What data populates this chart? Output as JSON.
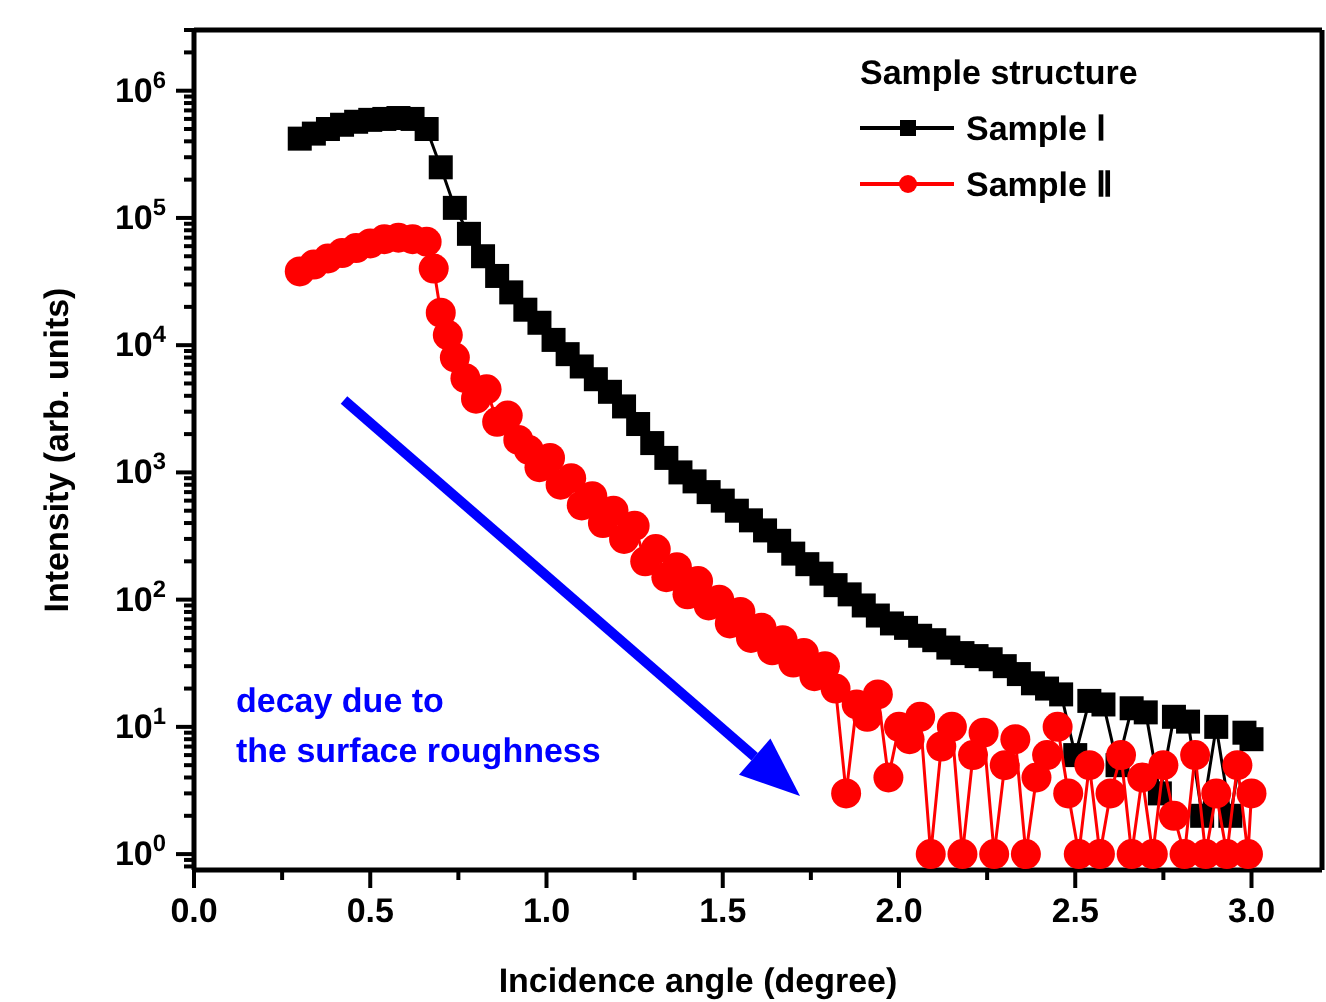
{
  "chart_data": {
    "type": "line",
    "xlabel": "Incidence angle (degree)",
    "ylabel": "Intensity (arb. units)",
    "legend_title": "Sample structure",
    "legend": "top right",
    "log": "y",
    "grid": false,
    "xlim": [
      0,
      3.2
    ],
    "xticks": [
      {
        "value": 0,
        "label": "0.0"
      },
      {
        "value": 0.25,
        "label": null
      },
      0.5,
      {
        "value": 0.75,
        "label": null
      },
      {
        "value": 1,
        "label": "1.0"
      },
      {
        "value": 1.25,
        "label": null
      },
      1.5,
      {
        "value": 1.75,
        "label": null
      },
      {
        "value": 2,
        "label": "2.0"
      },
      {
        "value": 2.25,
        "label": null
      },
      2.5,
      {
        "value": 2.75,
        "label": null
      },
      {
        "value": 3,
        "label": "3.0"
      }
    ],
    "ylim": [
      0.75,
      3000000
    ],
    "yticks": [
      {
        "value": 0.8,
        "label": null
      },
      {
        "value": 0.9,
        "label": null
      },
      {
        "value": 1,
        "label": "10$^{0}$"
      },
      {
        "value": 2,
        "label": null
      },
      {
        "value": 3,
        "label": null
      },
      {
        "value": 4,
        "label": null
      },
      {
        "value": 5,
        "label": null
      },
      {
        "value": 6,
        "label": null
      },
      {
        "value": 7,
        "label": null
      },
      {
        "value": 8,
        "label": null
      },
      {
        "value": 9,
        "label": null
      },
      {
        "value": 10,
        "label": "10$^{1}$"
      },
      {
        "value": 20,
        "label": null
      },
      {
        "value": 30,
        "label": null
      },
      {
        "value": 40,
        "label": null
      },
      {
        "value": 50,
        "label": null
      },
      {
        "value": 60,
        "label": null
      },
      {
        "value": 70,
        "label": null
      },
      {
        "value": 80,
        "label": null
      },
      {
        "value": 90,
        "label": null
      },
      {
        "value": 100,
        "label": "10$^{2}$"
      },
      {
        "value": 200,
        "label": null
      },
      {
        "value": 300,
        "label": null
      },
      {
        "value": 400,
        "label": null
      },
      {
        "value": 500,
        "label": null
      },
      {
        "value": 600,
        "label": null
      },
      {
        "value": 700,
        "label": null
      },
      {
        "value": 800,
        "label": null
      },
      {
        "value": 900,
        "label": null
      },
      {
        "value": 1000,
        "label": "10$^{3}$"
      },
      {
        "value": 2000,
        "label": null
      },
      {
        "value": 3000,
        "label": null
      },
      {
        "value": 4000,
        "label": null
      },
      {
        "value": 5000,
        "label": null
      },
      {
        "value": 6000,
        "label": null
      },
      {
        "value": 7000,
        "label": null
      },
      {
        "value": 8000,
        "label": null
      },
      {
        "value": 9000,
        "label": null
      },
      {
        "value": 10000,
        "label": "10$^{4}$"
      },
      {
        "value": 20000,
        "label": null
      },
      {
        "value": 30000,
        "label": null
      },
      {
        "value": 40000,
        "label": null
      },
      {
        "value": 50000,
        "label": null
      },
      {
        "value": 60000,
        "label": null
      },
      {
        "value": 70000,
        "label": null
      },
      {
        "value": 80000,
        "label": null
      },
      {
        "value": 90000,
        "label": null
      },
      {
        "value": 100000,
        "label": "10$^{5}$"
      },
      {
        "value": 200000,
        "label": null
      },
      {
        "value": 300000,
        "label": null
      },
      {
        "value": 400000,
        "label": null
      },
      {
        "value": 500000,
        "label": null
      },
      {
        "value": 600000,
        "label": null
      },
      {
        "value": 700000,
        "label": null
      },
      {
        "value": 800000,
        "label": null
      },
      {
        "value": 900000,
        "label": null
      },
      {
        "value": 1000000,
        "label": "10$^{6}$"
      },
      {
        "value": 2000000,
        "label": null
      },
      {
        "value": 3000000,
        "label": null
      }
    ],
    "annotations": [
      "decay due to\nthe surface roughness"
    ],
    "series": [
      {
        "name": "Sample Ⅰ",
        "color": "#000000",
        "marker": "square",
        "x": [
          0.3,
          0.34,
          0.38,
          0.42,
          0.46,
          0.5,
          0.54,
          0.58,
          0.62,
          0.66,
          0.7,
          0.74,
          0.78,
          0.82,
          0.86,
          0.9,
          0.94,
          0.98,
          1.02,
          1.06,
          1.1,
          1.14,
          1.18,
          1.22,
          1.26,
          1.3,
          1.34,
          1.38,
          1.42,
          1.46,
          1.5,
          1.54,
          1.58,
          1.62,
          1.66,
          1.7,
          1.74,
          1.78,
          1.82,
          1.86,
          1.9,
          1.94,
          1.98,
          2.02,
          2.06,
          2.1,
          2.14,
          2.18,
          2.22,
          2.26,
          2.3,
          2.34,
          2.38,
          2.42,
          2.46,
          2.5,
          2.54,
          2.58,
          2.62,
          2.66,
          2.7,
          2.74,
          2.78,
          2.82,
          2.86,
          2.9,
          2.94,
          2.98,
          3.0
        ],
        "values": [
          420000,
          460000,
          500000,
          540000,
          570000,
          590000,
          600000,
          610000,
          600000,
          500000,
          250000,
          120000,
          75000,
          50000,
          35000,
          26000,
          19000,
          15000,
          11000,
          8500,
          6800,
          5400,
          4300,
          3300,
          2400,
          1700,
          1300,
          1000,
          850,
          700,
          600,
          500,
          420,
          350,
          290,
          230,
          190,
          160,
          130,
          110,
          90,
          75,
          65,
          60,
          52,
          48,
          42,
          38,
          36,
          34,
          30,
          26,
          22,
          20,
          18,
          6,
          16,
          15,
          5,
          14,
          13,
          3,
          12,
          11,
          2,
          10,
          2,
          9,
          8
        ]
      },
      {
        "name": "Sample Ⅱ",
        "color": "#ff0000",
        "marker": "circle",
        "x": [
          0.3,
          0.34,
          0.38,
          0.42,
          0.46,
          0.5,
          0.54,
          0.58,
          0.62,
          0.66,
          0.68,
          0.7,
          0.72,
          0.74,
          0.77,
          0.8,
          0.83,
          0.86,
          0.89,
          0.92,
          0.95,
          0.98,
          1.01,
          1.04,
          1.07,
          1.1,
          1.13,
          1.16,
          1.19,
          1.22,
          1.25,
          1.28,
          1.31,
          1.34,
          1.37,
          1.4,
          1.43,
          1.46,
          1.49,
          1.52,
          1.55,
          1.58,
          1.61,
          1.64,
          1.67,
          1.7,
          1.73,
          1.76,
          1.79,
          1.82,
          1.85,
          1.88,
          1.91,
          1.94,
          1.97,
          2.0,
          2.03,
          2.06,
          2.09,
          2.12,
          2.15,
          2.18,
          2.21,
          2.24,
          2.27,
          2.3,
          2.33,
          2.36,
          2.39,
          2.42,
          2.45,
          2.48,
          2.51,
          2.54,
          2.57,
          2.6,
          2.63,
          2.66,
          2.69,
          2.72,
          2.75,
          2.78,
          2.81,
          2.84,
          2.87,
          2.9,
          2.93,
          2.96,
          2.99,
          3.0
        ],
        "values": [
          38000,
          43000,
          48000,
          53000,
          58000,
          63000,
          68000,
          70000,
          68000,
          65000,
          40000,
          18000,
          12000,
          8000,
          5500,
          3800,
          4500,
          2500,
          2800,
          1800,
          1500,
          1100,
          1300,
          800,
          900,
          550,
          650,
          400,
          500,
          300,
          380,
          200,
          250,
          150,
          180,
          110,
          140,
          90,
          100,
          65,
          80,
          50,
          60,
          40,
          48,
          32,
          38,
          25,
          30,
          20,
          3,
          15,
          12,
          18,
          4,
          10,
          8,
          12,
          1,
          7,
          10,
          1,
          6,
          9,
          1,
          5,
          8,
          1,
          4,
          6,
          10,
          3,
          1,
          5,
          1,
          3,
          6,
          1,
          4,
          1,
          5,
          2,
          1,
          6,
          1,
          3,
          1,
          5,
          1,
          3
        ]
      }
    ]
  }
}
